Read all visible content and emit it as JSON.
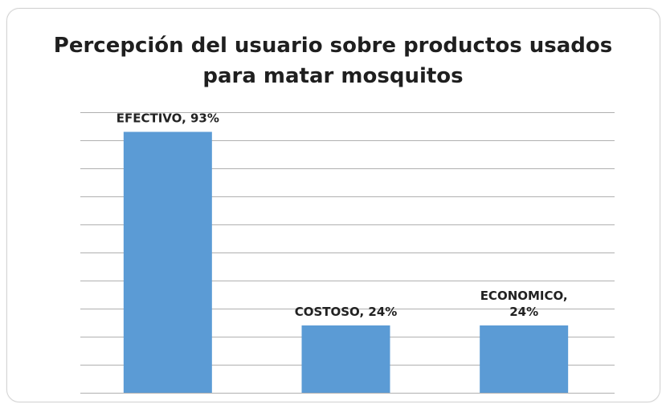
{
  "chart_data": {
    "type": "bar",
    "title_lines": [
      "Percepción del usuario sobre productos usados",
      "para matar mosquitos"
    ],
    "categories": [
      "EFECTIVO",
      "COSTOSO",
      "ECONOMICO"
    ],
    "values": [
      93,
      24,
      24
    ],
    "data_labels": [
      [
        "EFECTIVO, 93%"
      ],
      [
        "COSTOSO, 24%"
      ],
      [
        "ECONOMICO,",
        "24%"
      ]
    ],
    "ylim": [
      0,
      100
    ],
    "grid": true,
    "legend": "none",
    "bar_color": "#5b9bd5",
    "grid_color": "#b0b0b0"
  }
}
